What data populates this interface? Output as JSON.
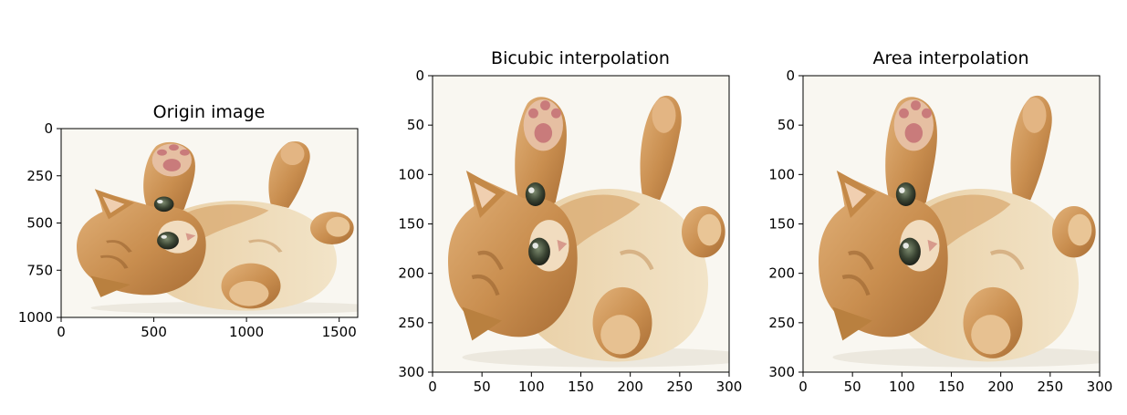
{
  "chart_data": [
    {
      "type": "image",
      "title": "Origin image",
      "xlim": [
        0,
        1600
      ],
      "ylim": [
        1000,
        0
      ],
      "x_ticks": [
        0,
        500,
        1000,
        1500
      ],
      "y_ticks": [
        0,
        250,
        500,
        750,
        1000
      ],
      "x_tick_labels": [
        "0",
        "500",
        "1000",
        "1500"
      ],
      "y_tick_labels": [
        "0",
        "250",
        "500",
        "750",
        "1000"
      ],
      "grid": false
    },
    {
      "type": "image",
      "title": "Bicubic interpolation",
      "xlim": [
        0,
        300
      ],
      "ylim": [
        300,
        0
      ],
      "x_ticks": [
        0,
        50,
        100,
        150,
        200,
        250,
        300
      ],
      "y_ticks": [
        0,
        50,
        100,
        150,
        200,
        250,
        300
      ],
      "x_tick_labels": [
        "0",
        "50",
        "100",
        "150",
        "200",
        "250",
        "300"
      ],
      "y_tick_labels": [
        "0",
        "50",
        "100",
        "150",
        "200",
        "250",
        "300"
      ],
      "grid": false
    },
    {
      "type": "image",
      "title": "Area interpolation",
      "xlim": [
        0,
        300
      ],
      "ylim": [
        300,
        0
      ],
      "x_ticks": [
        0,
        50,
        100,
        150,
        200,
        250,
        300
      ],
      "y_ticks": [
        0,
        50,
        100,
        150,
        200,
        250,
        300
      ],
      "x_tick_labels": [
        "0",
        "50",
        "100",
        "150",
        "200",
        "250",
        "300"
      ],
      "y_tick_labels": [
        "0",
        "50",
        "100",
        "150",
        "200",
        "250",
        "300"
      ],
      "grid": false
    }
  ]
}
